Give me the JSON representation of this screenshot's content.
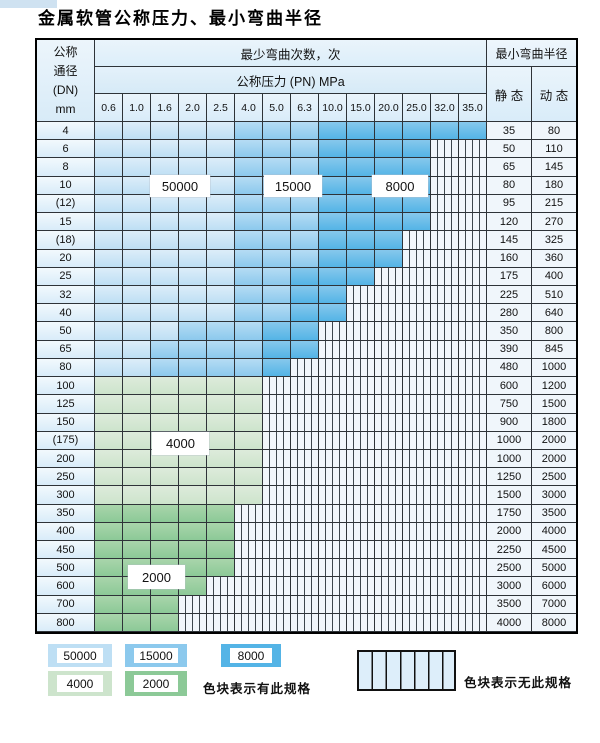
{
  "title": "金属软管公称压力、最小弯曲半径",
  "header": {
    "dn_lines": [
      "公称",
      "通径",
      "(DN)",
      "mm"
    ],
    "cycles": "最少弯曲次数，次",
    "pressure": "公称压力 (PN) MPa",
    "radius": "最小弯曲半径",
    "static": "静 态",
    "dynamic": "动 态"
  },
  "pressure_ticks": [
    "0.6",
    "1.0",
    "1.6",
    "2.0",
    "2.5",
    "4.0",
    "5.0",
    "6.3",
    "10.0",
    "15.0",
    "20.0",
    "25.0",
    "32.0",
    "35.0"
  ],
  "rows": [
    {
      "dn": "4",
      "static": "35",
      "dynamic": "80",
      "cells": [
        "b50",
        "b50",
        "b50",
        "b50",
        "b50",
        "b15",
        "b15",
        "b15",
        "b8",
        "b8",
        "b8",
        "b8",
        "b8",
        "b8"
      ]
    },
    {
      "dn": "6",
      "static": "50",
      "dynamic": "110",
      "cells": [
        "b50",
        "b50",
        "b50",
        "b50",
        "b50",
        "b15",
        "b15",
        "b15",
        "b8",
        "b8",
        "b8",
        "b8",
        "hx",
        "hx"
      ]
    },
    {
      "dn": "8",
      "static": "65",
      "dynamic": "145",
      "cells": [
        "b50",
        "b50",
        "b50",
        "b50",
        "b50",
        "b15",
        "b15",
        "b15",
        "b8",
        "b8",
        "b8",
        "b8",
        "hx",
        "hx"
      ]
    },
    {
      "dn": "10",
      "static": "80",
      "dynamic": "180",
      "cells": [
        "b50",
        "b50",
        "b50",
        "b50",
        "b50",
        "b15",
        "b15",
        "b15",
        "b8",
        "b8",
        "b8",
        "b8",
        "hx",
        "hx"
      ]
    },
    {
      "dn": "(12)",
      "static": "95",
      "dynamic": "215",
      "cells": [
        "b50",
        "b50",
        "b50",
        "b50",
        "b50",
        "b15",
        "b15",
        "b15",
        "b8",
        "b8",
        "b8",
        "b8",
        "hx",
        "hx"
      ]
    },
    {
      "dn": "15",
      "static": "120",
      "dynamic": "270",
      "cells": [
        "b50",
        "b50",
        "b50",
        "b50",
        "b50",
        "b15",
        "b15",
        "b15",
        "b8",
        "b8",
        "b8",
        "b8",
        "hx",
        "hx"
      ]
    },
    {
      "dn": "(18)",
      "static": "145",
      "dynamic": "325",
      "cells": [
        "b50",
        "b50",
        "b50",
        "b50",
        "b50",
        "b15",
        "b15",
        "b15",
        "b8",
        "b8",
        "b8",
        "hx",
        "hx",
        "hx"
      ]
    },
    {
      "dn": "20",
      "static": "160",
      "dynamic": "360",
      "cells": [
        "b50",
        "b50",
        "b50",
        "b50",
        "b50",
        "b15",
        "b15",
        "b15",
        "b8",
        "b8",
        "b8",
        "hx",
        "hx",
        "hx"
      ]
    },
    {
      "dn": "25",
      "static": "175",
      "dynamic": "400",
      "cells": [
        "b50",
        "b50",
        "b50",
        "b50",
        "b50",
        "b15",
        "b15",
        "b8",
        "b8",
        "b8",
        "hx",
        "hx",
        "hx",
        "hx"
      ]
    },
    {
      "dn": "32",
      "static": "225",
      "dynamic": "510",
      "cells": [
        "b50",
        "b50",
        "b50",
        "b50",
        "b50",
        "b15",
        "b15",
        "b8",
        "b8",
        "hx",
        "hx",
        "hx",
        "hx",
        "hx"
      ]
    },
    {
      "dn": "40",
      "static": "280",
      "dynamic": "640",
      "cells": [
        "b50",
        "b50",
        "b50",
        "b50",
        "b50",
        "b15",
        "b15",
        "b8",
        "b8",
        "hx",
        "hx",
        "hx",
        "hx",
        "hx"
      ]
    },
    {
      "dn": "50",
      "static": "350",
      "dynamic": "800",
      "cells": [
        "b50",
        "b50",
        "b50",
        "b15",
        "b15",
        "b15",
        "b8",
        "b8",
        "hx",
        "hx",
        "hx",
        "hx",
        "hx",
        "hx"
      ]
    },
    {
      "dn": "65",
      "static": "390",
      "dynamic": "845",
      "cells": [
        "b50",
        "b50",
        "b15",
        "b15",
        "b15",
        "b15",
        "b8",
        "b8",
        "hx",
        "hx",
        "hx",
        "hx",
        "hx",
        "hx"
      ]
    },
    {
      "dn": "80",
      "static": "480",
      "dynamic": "1000",
      "cells": [
        "b50",
        "b50",
        "b15",
        "b15",
        "b15",
        "b15",
        "b8",
        "hx",
        "hx",
        "hx",
        "hx",
        "hx",
        "hx",
        "hx"
      ]
    },
    {
      "dn": "100",
      "static": "600",
      "dynamic": "1200",
      "cells": [
        "g4",
        "g4",
        "g4",
        "g4",
        "g4",
        "g4",
        "hx",
        "hx",
        "hx",
        "hx",
        "hx",
        "hx",
        "hx",
        "hx"
      ]
    },
    {
      "dn": "125",
      "static": "750",
      "dynamic": "1500",
      "cells": [
        "g4",
        "g4",
        "g4",
        "g4",
        "g4",
        "g4",
        "hx",
        "hx",
        "hx",
        "hx",
        "hx",
        "hx",
        "hx",
        "hx"
      ]
    },
    {
      "dn": "150",
      "static": "900",
      "dynamic": "1800",
      "cells": [
        "g4",
        "g4",
        "g4",
        "g4",
        "g4",
        "g4",
        "hx",
        "hx",
        "hx",
        "hx",
        "hx",
        "hx",
        "hx",
        "hx"
      ]
    },
    {
      "dn": "(175)",
      "static": "1000",
      "dynamic": "2000",
      "cells": [
        "g4",
        "g4",
        "g4",
        "g4",
        "g4",
        "g4",
        "hx",
        "hx",
        "hx",
        "hx",
        "hx",
        "hx",
        "hx",
        "hx"
      ]
    },
    {
      "dn": "200",
      "static": "1000",
      "dynamic": "2000",
      "cells": [
        "g4",
        "g4",
        "g4",
        "g4",
        "g4",
        "g4",
        "hx",
        "hx",
        "hx",
        "hx",
        "hx",
        "hx",
        "hx",
        "hx"
      ]
    },
    {
      "dn": "250",
      "static": "1250",
      "dynamic": "2500",
      "cells": [
        "g4",
        "g4",
        "g4",
        "g4",
        "g4",
        "g4",
        "hx",
        "hx",
        "hx",
        "hx",
        "hx",
        "hx",
        "hx",
        "hx"
      ]
    },
    {
      "dn": "300",
      "static": "1500",
      "dynamic": "3000",
      "cells": [
        "g4",
        "g4",
        "g4",
        "g4",
        "g4",
        "g4",
        "hx",
        "hx",
        "hx",
        "hx",
        "hx",
        "hx",
        "hx",
        "hx"
      ]
    },
    {
      "dn": "350",
      "static": "1750",
      "dynamic": "3500",
      "cells": [
        "g2",
        "g2",
        "g2",
        "g2",
        "g2",
        "hx",
        "hx",
        "hx",
        "hx",
        "hx",
        "hx",
        "hx",
        "hx",
        "hx"
      ]
    },
    {
      "dn": "400",
      "static": "2000",
      "dynamic": "4000",
      "cells": [
        "g2",
        "g2",
        "g2",
        "g2",
        "g2",
        "hx",
        "hx",
        "hx",
        "hx",
        "hx",
        "hx",
        "hx",
        "hx",
        "hx"
      ]
    },
    {
      "dn": "450",
      "static": "2250",
      "dynamic": "4500",
      "cells": [
        "g2",
        "g2",
        "g2",
        "g2",
        "g2",
        "hx",
        "hx",
        "hx",
        "hx",
        "hx",
        "hx",
        "hx",
        "hx",
        "hx"
      ]
    },
    {
      "dn": "500",
      "static": "2500",
      "dynamic": "5000",
      "cells": [
        "g2",
        "g2",
        "g2",
        "g2",
        "g2",
        "hx",
        "hx",
        "hx",
        "hx",
        "hx",
        "hx",
        "hx",
        "hx",
        "hx"
      ]
    },
    {
      "dn": "600",
      "static": "3000",
      "dynamic": "6000",
      "cells": [
        "g2",
        "g2",
        "g2",
        "g2",
        "hx",
        "hx",
        "hx",
        "hx",
        "hx",
        "hx",
        "hx",
        "hx",
        "hx",
        "hx"
      ]
    },
    {
      "dn": "700",
      "static": "3500",
      "dynamic": "7000",
      "cells": [
        "g2",
        "g2",
        "g2",
        "hx",
        "hx",
        "hx",
        "hx",
        "hx",
        "hx",
        "hx",
        "hx",
        "hx",
        "hx",
        "hx"
      ]
    },
    {
      "dn": "800",
      "static": "4000",
      "dynamic": "8000",
      "cells": [
        "g2",
        "g2",
        "g2",
        "hx",
        "hx",
        "hx",
        "hx",
        "hx",
        "hx",
        "hx",
        "hx",
        "hx",
        "hx",
        "hx"
      ]
    }
  ],
  "cycle_labels": [
    {
      "text": "50000"
    },
    {
      "text": "15000"
    },
    {
      "text": "8000"
    },
    {
      "text": "4000"
    },
    {
      "text": "2000"
    }
  ],
  "legend": {
    "items": [
      {
        "label": "50000",
        "band": "b50"
      },
      {
        "label": "15000",
        "band": "b15"
      },
      {
        "label": "8000",
        "band": "b8"
      },
      {
        "label": "4000",
        "band": "g4"
      },
      {
        "label": "2000",
        "band": "g2"
      }
    ],
    "has_spec_text": "色块表示有此规格",
    "no_spec_text": "色块表示无此规格"
  },
  "colors": {
    "b50": "#bedff4",
    "b15": "#8cc9ed",
    "b8": "#54b4e6",
    "g4": "#cde4cc",
    "g2": "#8cc997",
    "hatch_line": "#3d464d",
    "grid": "#2e3338"
  }
}
